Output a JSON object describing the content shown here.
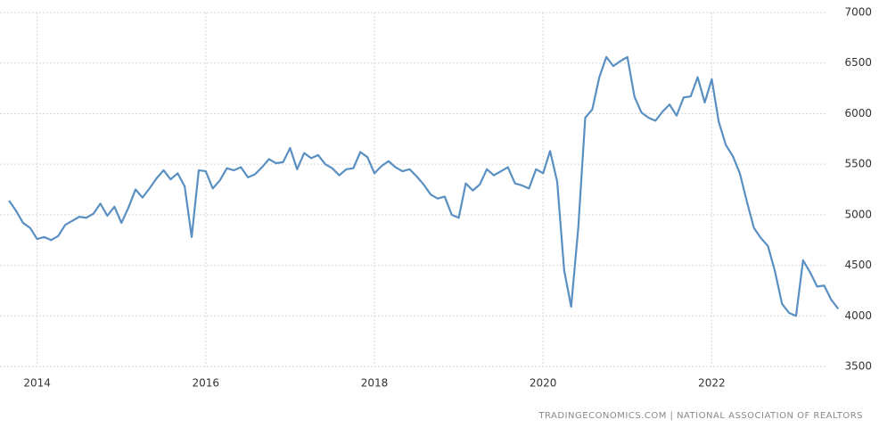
{
  "chart_data": {
    "type": "line",
    "source": "TRADINGECONOMICS.COM | NATIONAL ASSOCIATION OF REALTORS",
    "color": "#5a8fc2",
    "grid": true,
    "xlim": [
      2013.56,
      2023.55
    ],
    "xticks": [
      2014,
      2016,
      2018,
      2020,
      2022
    ],
    "ylim": [
      3500,
      7000
    ],
    "yticks": [
      3500,
      4000,
      4500,
      5000,
      5500,
      6000,
      6500,
      7000
    ],
    "x": [
      2013.667,
      2013.75,
      2013.833,
      2013.917,
      2014,
      2014.083,
      2014.167,
      2014.25,
      2014.333,
      2014.417,
      2014.5,
      2014.583,
      2014.667,
      2014.75,
      2014.833,
      2014.917,
      2015,
      2015.083,
      2015.167,
      2015.25,
      2015.333,
      2015.417,
      2015.5,
      2015.583,
      2015.667,
      2015.75,
      2015.833,
      2015.917,
      2016,
      2016.083,
      2016.167,
      2016.25,
      2016.333,
      2016.417,
      2016.5,
      2016.583,
      2016.667,
      2016.75,
      2016.833,
      2016.917,
      2017,
      2017.083,
      2017.167,
      2017.25,
      2017.333,
      2017.417,
      2017.5,
      2017.583,
      2017.667,
      2017.75,
      2017.833,
      2017.917,
      2018,
      2018.083,
      2018.167,
      2018.25,
      2018.333,
      2018.417,
      2018.5,
      2018.583,
      2018.667,
      2018.75,
      2018.833,
      2018.917,
      2019,
      2019.083,
      2019.167,
      2019.25,
      2019.333,
      2019.417,
      2019.5,
      2019.583,
      2019.667,
      2019.75,
      2019.833,
      2019.917,
      2020,
      2020.083,
      2020.167,
      2020.25,
      2020.333,
      2020.417,
      2020.5,
      2020.583,
      2020.667,
      2020.75,
      2020.833,
      2020.917,
      2021,
      2021.083,
      2021.167,
      2021.25,
      2021.333,
      2021.417,
      2021.5,
      2021.583,
      2021.667,
      2021.75,
      2021.833,
      2021.917,
      2022,
      2022.083,
      2022.167,
      2022.25,
      2022.333,
      2022.417,
      2022.5,
      2022.583,
      2022.667,
      2022.75,
      2022.833,
      2022.917,
      2023,
      2023.083,
      2023.167,
      2023.25,
      2023.333,
      2023.417,
      2023.5
    ],
    "values": [
      5140,
      5040,
      4920,
      4870,
      4760,
      4780,
      4750,
      4790,
      4900,
      4940,
      4980,
      4970,
      5010,
      5110,
      4990,
      5080,
      4920,
      5070,
      5250,
      5170,
      5260,
      5360,
      5440,
      5350,
      5410,
      5280,
      4780,
      5440,
      5430,
      5260,
      5340,
      5460,
      5440,
      5470,
      5370,
      5400,
      5470,
      5550,
      5510,
      5520,
      5660,
      5450,
      5610,
      5560,
      5590,
      5500,
      5460,
      5390,
      5450,
      5460,
      5620,
      5570,
      5410,
      5480,
      5530,
      5470,
      5430,
      5450,
      5380,
      5300,
      5200,
      5160,
      5180,
      5000,
      4970,
      5310,
      5240,
      5300,
      5450,
      5390,
      5430,
      5470,
      5310,
      5290,
      5260,
      5450,
      5410,
      5630,
      5330,
      4450,
      4090,
      4870,
      5960,
      6040,
      6360,
      6560,
      6470,
      6520,
      6560,
      6170,
      6010,
      5960,
      5930,
      6020,
      6090,
      5980,
      6160,
      6170,
      6360,
      6110,
      6340,
      5920,
      5690,
      5580,
      5410,
      5130,
      4870,
      4770,
      4690,
      4440,
      4120,
      4030,
      4000,
      4550,
      4430,
      4290,
      4300,
      4160,
      4070
    ]
  }
}
